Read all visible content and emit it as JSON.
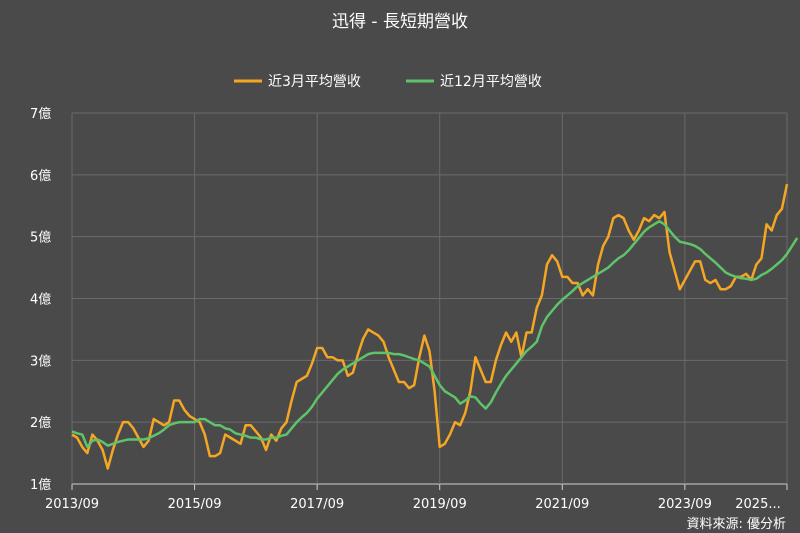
{
  "chart_data": {
    "type": "line",
    "title": "迅得 - 長短期營收",
    "xlabel": "",
    "ylabel": "",
    "ylim": [
      1,
      7
    ],
    "y_ticks": [
      "1億",
      "2億",
      "3億",
      "4億",
      "5億",
      "6億",
      "7億"
    ],
    "x_ticks": [
      "2013/09",
      "2015/09",
      "2017/09",
      "2019/09",
      "2021/09",
      "2023/09",
      "2025..."
    ],
    "legend_position": "top-center",
    "grid": true,
    "x_start": "2013/09",
    "series": [
      {
        "name": "近3月平均營收",
        "color": "#f5a623",
        "values": [
          1.8,
          1.75,
          1.6,
          1.5,
          1.8,
          1.7,
          1.55,
          1.25,
          1.55,
          1.8,
          2.0,
          2.0,
          1.9,
          1.75,
          1.6,
          1.7,
          2.05,
          2.0,
          1.95,
          2.0,
          2.35,
          2.35,
          2.2,
          2.1,
          2.05,
          2.0,
          1.8,
          1.45,
          1.45,
          1.5,
          1.8,
          1.75,
          1.7,
          1.65,
          1.95,
          1.95,
          1.85,
          1.75,
          1.55,
          1.8,
          1.7,
          1.9,
          2.0,
          2.35,
          2.65,
          2.7,
          2.75,
          2.95,
          3.2,
          3.2,
          3.05,
          3.05,
          3.0,
          3.0,
          2.75,
          2.8,
          3.1,
          3.35,
          3.5,
          3.45,
          3.4,
          3.3,
          3.05,
          2.85,
          2.65,
          2.65,
          2.55,
          2.6,
          3.05,
          3.4,
          3.15,
          2.5,
          1.6,
          1.65,
          1.8,
          2.0,
          1.95,
          2.15,
          2.5,
          3.05,
          2.85,
          2.65,
          2.65,
          3.0,
          3.25,
          3.45,
          3.3,
          3.45,
          3.05,
          3.45,
          3.45,
          3.85,
          4.05,
          4.55,
          4.7,
          4.6,
          4.35,
          4.35,
          4.25,
          4.25,
          4.05,
          4.15,
          4.05,
          4.55,
          4.85,
          5.0,
          5.3,
          5.35,
          5.3,
          5.1,
          4.95,
          5.1,
          5.3,
          5.25,
          5.35,
          5.3,
          5.4,
          4.75,
          4.45,
          4.15,
          4.3,
          4.45,
          4.6,
          4.6,
          4.3,
          4.25,
          4.3,
          4.15,
          4.15,
          4.2,
          4.35,
          4.35,
          4.4,
          4.3,
          4.55,
          4.65,
          5.2,
          5.1,
          5.35,
          5.45,
          5.85
        ]
      },
      {
        "name": "近12月平均營收",
        "color": "#5fc36a",
        "values": [
          1.85,
          1.82,
          1.8,
          1.6,
          1.7,
          1.72,
          1.68,
          1.62,
          1.65,
          1.68,
          1.7,
          1.72,
          1.72,
          1.72,
          1.72,
          1.74,
          1.78,
          1.82,
          1.88,
          1.95,
          1.98,
          2.0,
          2.0,
          2.0,
          2.0,
          2.05,
          2.05,
          2.0,
          1.95,
          1.95,
          1.9,
          1.88,
          1.82,
          1.8,
          1.78,
          1.75,
          1.75,
          1.72,
          1.72,
          1.75,
          1.75,
          1.78,
          1.8,
          1.9,
          2.0,
          2.08,
          2.15,
          2.25,
          2.38,
          2.48,
          2.58,
          2.68,
          2.78,
          2.85,
          2.9,
          2.95,
          3.0,
          3.05,
          3.1,
          3.12,
          3.12,
          3.12,
          3.12,
          3.1,
          3.1,
          3.08,
          3.05,
          3.02,
          3.0,
          2.95,
          2.9,
          2.75,
          2.6,
          2.5,
          2.45,
          2.4,
          2.3,
          2.35,
          2.42,
          2.4,
          2.3,
          2.22,
          2.32,
          2.48,
          2.62,
          2.75,
          2.85,
          2.95,
          3.05,
          3.15,
          3.22,
          3.3,
          3.55,
          3.7,
          3.8,
          3.9,
          3.98,
          4.05,
          4.12,
          4.2,
          4.25,
          4.3,
          4.35,
          4.4,
          4.45,
          4.5,
          4.58,
          4.65,
          4.7,
          4.78,
          4.88,
          4.98,
          5.08,
          5.15,
          5.2,
          5.25,
          5.2,
          5.1,
          5.0,
          4.92,
          4.9,
          4.88,
          4.85,
          4.8,
          4.72,
          4.65,
          4.58,
          4.5,
          4.42,
          4.38,
          4.35,
          4.33,
          4.32,
          4.3,
          4.32,
          4.38,
          4.42,
          4.48,
          4.55,
          4.62,
          4.72,
          4.85,
          4.98
        ]
      }
    ]
  },
  "source_text": "資料來源: 優分析"
}
